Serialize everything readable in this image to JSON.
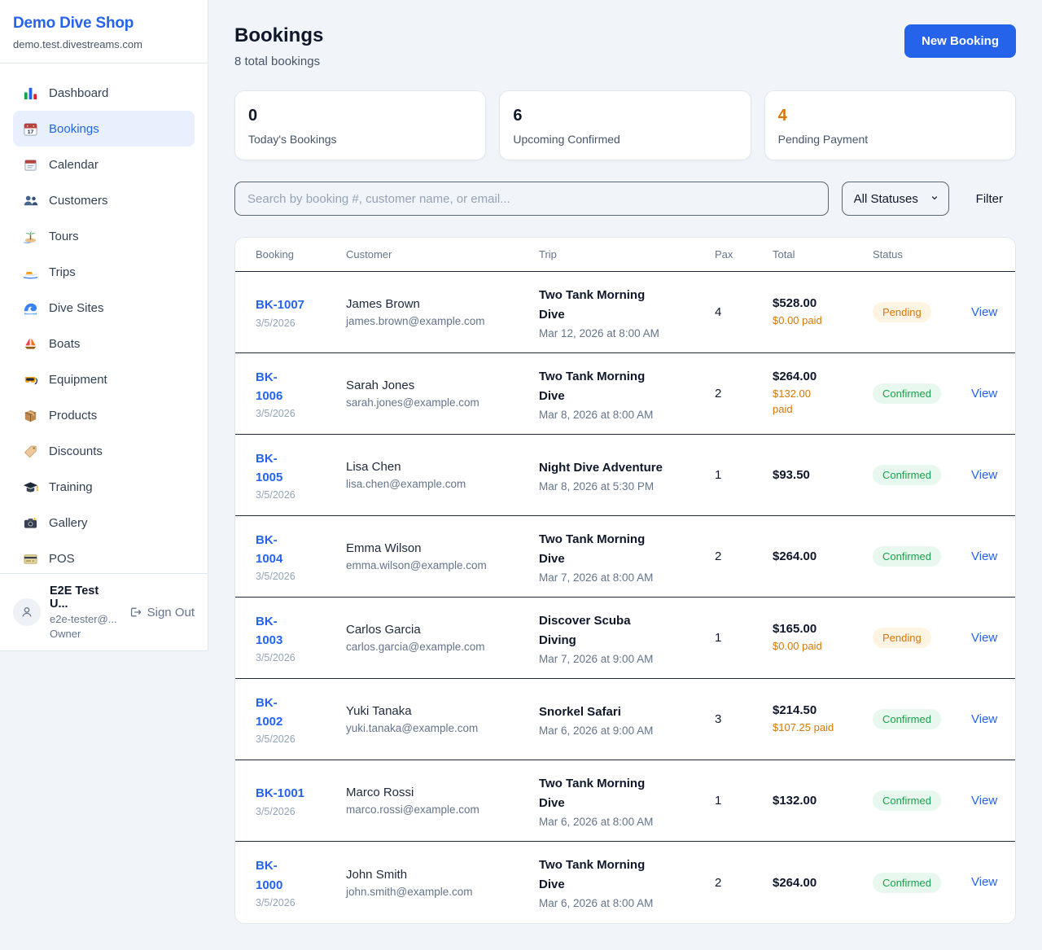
{
  "sidebar": {
    "brand": {
      "name": "Demo Dive Shop",
      "domain": "demo.test.divestreams.com"
    },
    "items": [
      {
        "label": "Dashboard",
        "icon": "bar-chart-icon",
        "active": false
      },
      {
        "label": "Bookings",
        "icon": "calendar-date-icon",
        "active": true
      },
      {
        "label": "Calendar",
        "icon": "calendar-icon",
        "active": false
      },
      {
        "label": "Customers",
        "icon": "people-icon",
        "active": false
      },
      {
        "label": "Tours",
        "icon": "island-icon",
        "active": false
      },
      {
        "label": "Trips",
        "icon": "speedboat-icon",
        "active": false
      },
      {
        "label": "Dive Sites",
        "icon": "wave-icon",
        "active": false
      },
      {
        "label": "Boats",
        "icon": "sailboat-icon",
        "active": false
      },
      {
        "label": "Equipment",
        "icon": "diving-mask-icon",
        "active": false
      },
      {
        "label": "Products",
        "icon": "package-icon",
        "active": false
      },
      {
        "label": "Discounts",
        "icon": "tag-icon",
        "active": false
      },
      {
        "label": "Training",
        "icon": "graduation-cap-icon",
        "active": false
      },
      {
        "label": "Gallery",
        "icon": "camera-icon",
        "active": false
      },
      {
        "label": "POS",
        "icon": "credit-card-icon",
        "active": false
      }
    ],
    "user": {
      "name": "E2E Test U...",
      "email": "e2e-tester@...",
      "role": "Owner",
      "sign_out_label": "Sign Out"
    }
  },
  "header": {
    "title": "Bookings",
    "subtitle": "8 total bookings",
    "new_booking_label": "New Booking"
  },
  "stats": [
    {
      "value": "0",
      "label": "Today's Bookings",
      "color": "#0f172a"
    },
    {
      "value": "6",
      "label": "Upcoming Confirmed",
      "color": "#0f172a"
    },
    {
      "value": "4",
      "label": "Pending Payment",
      "color": "#d97706"
    }
  ],
  "filters": {
    "search_placeholder": "Search by booking #, customer name, or email...",
    "status_selected": "All Statuses",
    "filter_label": "Filter"
  },
  "table": {
    "columns": [
      "Booking",
      "Customer",
      "Trip",
      "Pax",
      "Total",
      "Status",
      ""
    ],
    "rows": [
      {
        "id": "BK-1007",
        "date": "3/5/2026",
        "customer": "James Brown",
        "email": "james.brown@example.com",
        "trip": "Two Tank Morning\nDive",
        "trip_time": "Mar 12, 2026 at 8:00 AM",
        "pax": "4",
        "total": "$528.00",
        "paid": "$0.00 paid",
        "status": "Pending",
        "action": "View"
      },
      {
        "id": "BK-\n1006",
        "date": "3/5/2026",
        "customer": "Sarah Jones",
        "email": "sarah.jones@example.com",
        "trip": "Two Tank Morning\nDive",
        "trip_time": "Mar 8, 2026 at 8:00 AM",
        "pax": "2",
        "total": "$264.00",
        "paid": "$132.00\npaid",
        "status": "Confirmed",
        "action": "View"
      },
      {
        "id": "BK-\n1005",
        "date": "3/5/2026",
        "customer": "Lisa Chen",
        "email": "lisa.chen@example.com",
        "trip": "Night Dive Adventure",
        "trip_time": "Mar 8, 2026 at 5:30 PM",
        "pax": "1",
        "total": "$93.50",
        "paid": "",
        "status": "Confirmed",
        "action": "View"
      },
      {
        "id": "BK-\n1004",
        "date": "3/5/2026",
        "customer": "Emma Wilson",
        "email": "emma.wilson@example.com",
        "trip": "Two Tank Morning\nDive",
        "trip_time": "Mar 7, 2026 at 8:00 AM",
        "pax": "2",
        "total": "$264.00",
        "paid": "",
        "status": "Confirmed",
        "action": "View"
      },
      {
        "id": "BK-\n1003",
        "date": "3/5/2026",
        "customer": "Carlos Garcia",
        "email": "carlos.garcia@example.com",
        "trip": "Discover Scuba\nDiving",
        "trip_time": "Mar 7, 2026 at 9:00 AM",
        "pax": "1",
        "total": "$165.00",
        "paid": "$0.00 paid",
        "status": "Pending",
        "action": "View"
      },
      {
        "id": "BK-\n1002",
        "date": "3/5/2026",
        "customer": "Yuki Tanaka",
        "email": "yuki.tanaka@example.com",
        "trip": "Snorkel Safari",
        "trip_time": "Mar 6, 2026 at 9:00 AM",
        "pax": "3",
        "total": "$214.50",
        "paid": "$107.25 paid",
        "status": "Confirmed",
        "action": "View"
      },
      {
        "id": "BK-1001",
        "date": "3/5/2026",
        "customer": "Marco Rossi",
        "email": "marco.rossi@example.com",
        "trip": "Two Tank Morning\nDive",
        "trip_time": "Mar 6, 2026 at 8:00 AM",
        "pax": "1",
        "total": "$132.00",
        "paid": "",
        "status": "Confirmed",
        "action": "View"
      },
      {
        "id": "BK-\n1000",
        "date": "3/5/2026",
        "customer": "John Smith",
        "email": "john.smith@example.com",
        "trip": "Two Tank Morning\nDive",
        "trip_time": "Mar 6, 2026 at 8:00 AM",
        "pax": "2",
        "total": "$264.00",
        "paid": "",
        "status": "Confirmed",
        "action": "View"
      }
    ]
  },
  "colors": {
    "accent": "#2563eb",
    "paid_text": "#d97706",
    "pending_stat": "#d97706",
    "status": {
      "Pending": {
        "bg": "#fdf4e3",
        "text": "#d97706"
      },
      "Confirmed": {
        "bg": "#e8f8ee",
        "text": "#16a34a"
      }
    }
  }
}
